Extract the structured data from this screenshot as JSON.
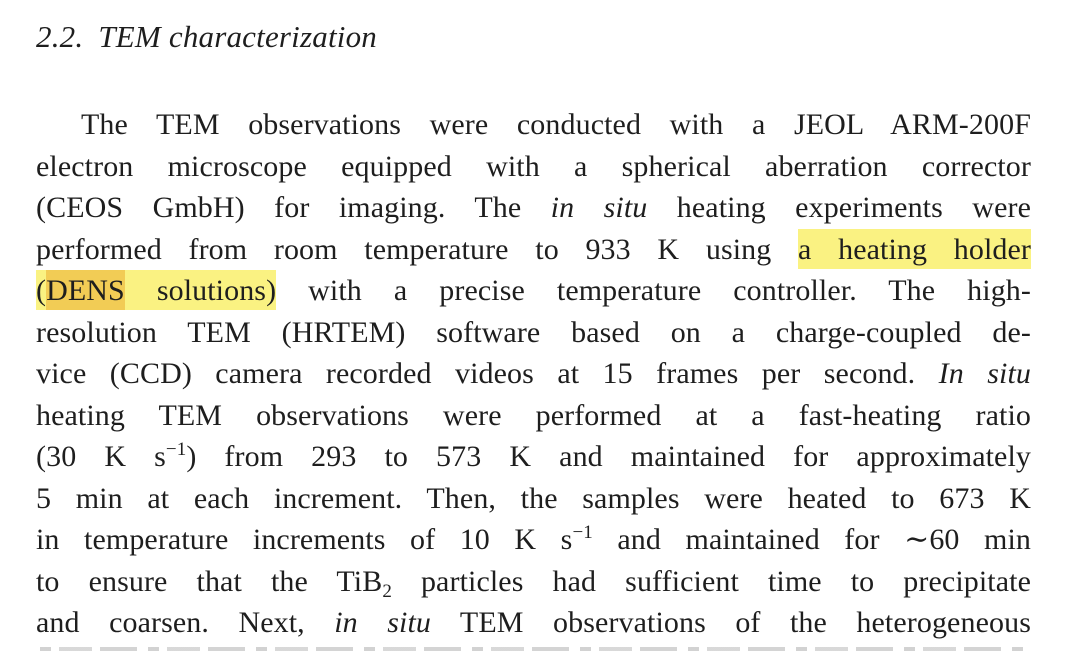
{
  "section": {
    "number": "2.2.",
    "title": "TEM characterization"
  },
  "colors": {
    "text": "#1e1e1e",
    "page_background": "#ffffff",
    "highlight": "#faf282",
    "highlight_strong": "#f2cc55"
  },
  "paragraph": {
    "lines": [
      {
        "indent": true,
        "segments": [
          {
            "t": "The TEM observations were conducted with a JEOL ARM-200F"
          }
        ]
      },
      {
        "segments": [
          {
            "t": "electron microscope equipped with a spherical aberration corrector"
          }
        ]
      },
      {
        "segments": [
          {
            "t": "(CEOS GmbH) for imaging. The "
          },
          {
            "t": "in situ",
            "i": true
          },
          {
            "t": " heating experiments were"
          }
        ]
      },
      {
        "segments": [
          {
            "t": "performed from room temperature to 933 K using "
          },
          {
            "t": "a heating holder",
            "hl": true
          }
        ]
      },
      {
        "segments": [
          {
            "t": "(",
            "hl": true
          },
          {
            "t": "DENS",
            "hl2": true
          },
          {
            "t": " solutions)",
            "hl": true
          },
          {
            "t": " with a precise temperature controller. The high-"
          }
        ]
      },
      {
        "segments": [
          {
            "t": "resolution TEM (HRTEM) software based on a charge-coupled de-"
          }
        ]
      },
      {
        "segments": [
          {
            "t": "vice (CCD) camera recorded videos at 15 frames per second. "
          },
          {
            "t": "In situ",
            "i": true
          }
        ]
      },
      {
        "segments": [
          {
            "t": "heating TEM observations were performed at a fast-heating ratio"
          }
        ]
      },
      {
        "segments": [
          {
            "t": "(30 K s"
          },
          {
            "t": "−1",
            "sup": true
          },
          {
            "t": ") from 293 to 573 K and maintained for approximately"
          }
        ]
      },
      {
        "segments": [
          {
            "t": "5 min at each increment. Then, the samples were heated to 673 K"
          }
        ]
      },
      {
        "segments": [
          {
            "t": "in temperature increments of 10 K s"
          },
          {
            "t": "−1",
            "sup": true
          },
          {
            "t": " and maintained for ∼60 min"
          }
        ]
      },
      {
        "segments": [
          {
            "t": "to ensure that the TiB"
          },
          {
            "t": "2",
            "sub": true
          },
          {
            "t": " particles had sufficient time to precipitate"
          }
        ]
      },
      {
        "segments": [
          {
            "t": "and coarsen. Next, "
          },
          {
            "t": "in situ",
            "i": true
          },
          {
            "t": " TEM observations of the heterogeneous"
          }
        ]
      }
    ]
  }
}
